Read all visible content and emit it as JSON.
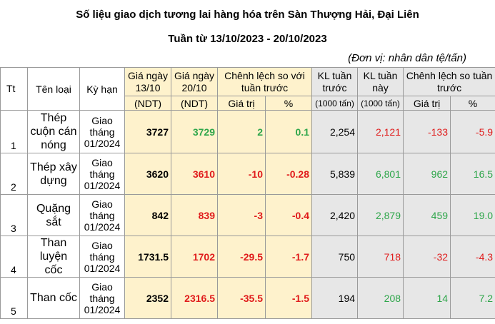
{
  "title": "Số liệu giao dịch tương lai hàng hóa trên Sàn Thượng Hải, Đại Liên",
  "subtitle": "Tuần từ 13/10/2023 - 20/10/2023",
  "unit": "(Đơn vị: nhân dân tệ/tấn)",
  "headers": {
    "tt": "Tt",
    "ten_loai": "Tên loại",
    "ky_han": "Kỳ hạn",
    "gia_1310": "Giá ngày 13/10",
    "gia_1310_unit": "(NDT)",
    "gia_2010": "Giá ngày 20/10",
    "gia_2010_unit": "(NDT)",
    "chenh_lech": "Chênh lệch so với tuần trước",
    "gia_tri": "Giá trị",
    "phan_tram": "%",
    "kl_truoc": "KL tuần trước",
    "kl_truoc_unit": "(1000 tấn)",
    "kl_nay": "KL tuần này",
    "kl_nay_unit": "(1000 tấn)",
    "chenh_lech_2": "Chênh lệch so tuần trước",
    "gia_tri_2": "Giá trị",
    "phan_tram_2": "%"
  },
  "rows": [
    {
      "tt": "1",
      "ten": "Thép cuộn cán nóng",
      "ky_han": "Giao tháng 01/2024",
      "gia_1310": "3727",
      "gia_2010": "3729",
      "gia_2010_color": "green",
      "cl_gia_tri": "2",
      "cl_pct": "0.1",
      "cl_color": "green",
      "kl_truoc": "2,254",
      "kl_nay": "2,121",
      "kl_nay_color": "red",
      "cl2_gia_tri": "-133",
      "cl2_pct": "-5.9",
      "cl2_color": "red"
    },
    {
      "tt": "2",
      "ten": "Thép xây dựng",
      "ky_han": "Giao tháng 01/2024",
      "gia_1310": "3620",
      "gia_2010": "3610",
      "gia_2010_color": "red",
      "cl_gia_tri": "-10",
      "cl_pct": "-0.28",
      "cl_color": "red",
      "kl_truoc": "5,839",
      "kl_nay": "6,801",
      "kl_nay_color": "green",
      "cl2_gia_tri": "962",
      "cl2_pct": "16.5",
      "cl2_color": "green"
    },
    {
      "tt": "3",
      "ten": "Quặng sắt",
      "ky_han": "Giao tháng 01/2024",
      "gia_1310": "842",
      "gia_2010": "839",
      "gia_2010_color": "red",
      "cl_gia_tri": "-3",
      "cl_pct": "-0.4",
      "cl_color": "red",
      "kl_truoc": "2,420",
      "kl_nay": "2,879",
      "kl_nay_color": "green",
      "cl2_gia_tri": "459",
      "cl2_pct": "19.0",
      "cl2_color": "green"
    },
    {
      "tt": "4",
      "ten": "Than luyện cốc",
      "ky_han": "Giao tháng 01/2024",
      "gia_1310": "1731.5",
      "gia_2010": "1702",
      "gia_2010_color": "red",
      "cl_gia_tri": "-29.5",
      "cl_pct": "-1.7",
      "cl_color": "red",
      "kl_truoc": "750",
      "kl_nay": "718",
      "kl_nay_color": "red",
      "cl2_gia_tri": "-32",
      "cl2_pct": "-4.3",
      "cl2_color": "red"
    },
    {
      "tt": "5",
      "ten": "Than cốc",
      "ky_han": "Giao tháng 01/2024",
      "gia_1310": "2352",
      "gia_2010": "2316.5",
      "gia_2010_color": "red",
      "cl_gia_tri": "-35.5",
      "cl_pct": "-1.5",
      "cl_color": "red",
      "kl_truoc": "194",
      "kl_nay": "208",
      "kl_nay_color": "green",
      "cl2_gia_tri": "14",
      "cl2_pct": "7.2",
      "cl2_color": "green"
    }
  ],
  "colors": {
    "green": "#2ea64a",
    "red": "#e01b1b",
    "tan": "#fef2cc",
    "gray": "#e7e7e7"
  }
}
